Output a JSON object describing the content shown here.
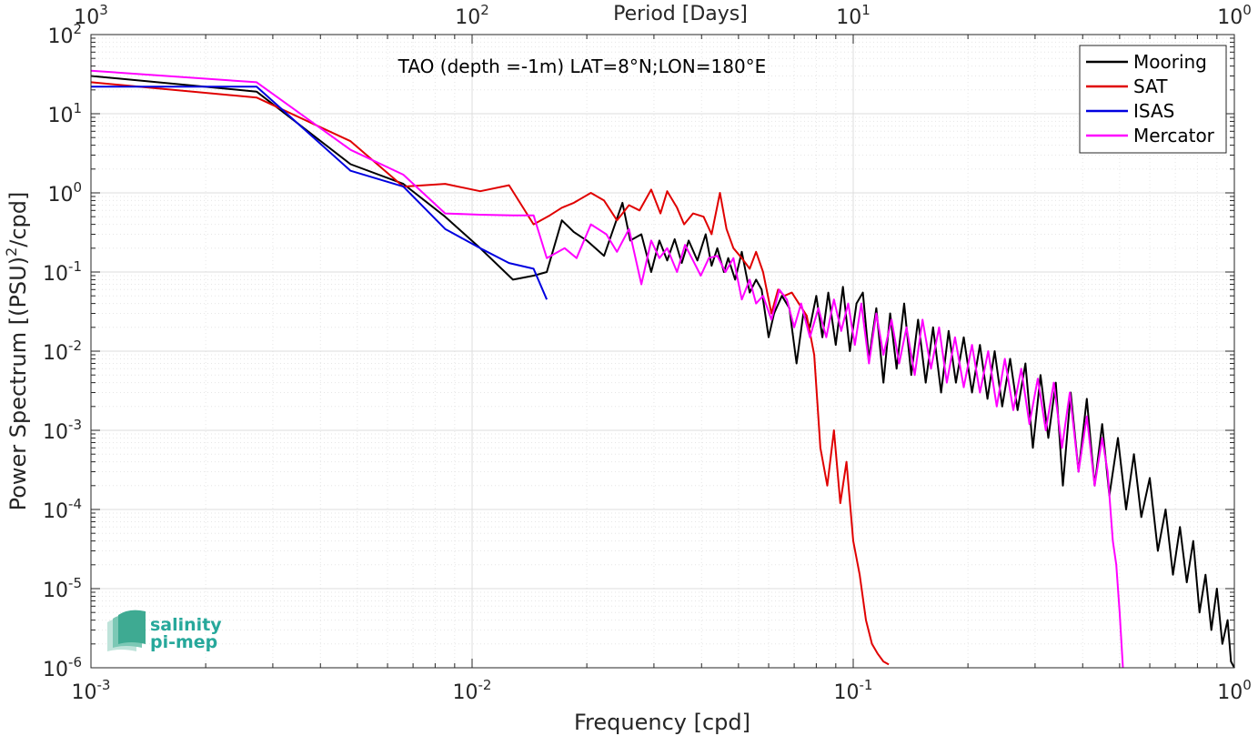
{
  "chart_data": {
    "type": "line",
    "title": "TAO (depth =-1m) LAT=8°N;LON=180°E",
    "xlabel": "Frequency [cpd]",
    "ylabel_base": "Power Spectrum [(PSU)",
    "ylabel_sup": "2",
    "ylabel_tail": "/cpd]",
    "top_xlabel": "Period [Days]",
    "x_scale": "log",
    "y_scale": "log",
    "xlim": [
      0.001,
      1
    ],
    "ylim": [
      1e-06,
      100
    ],
    "grid": true,
    "legend_position": "top-right",
    "x_ticks": [
      {
        "value": 0.001,
        "base": "10",
        "exp": "-3"
      },
      {
        "value": 0.01,
        "base": "10",
        "exp": "-2"
      },
      {
        "value": 0.1,
        "base": "10",
        "exp": "-1"
      },
      {
        "value": 1,
        "base": "10",
        "exp": "0"
      }
    ],
    "y_ticks": [
      {
        "value": 1e-06,
        "base": "10",
        "exp": "-6"
      },
      {
        "value": 1e-05,
        "base": "10",
        "exp": "-5"
      },
      {
        "value": 0.0001,
        "base": "10",
        "exp": "-4"
      },
      {
        "value": 0.001,
        "base": "10",
        "exp": "-3"
      },
      {
        "value": 0.01,
        "base": "10",
        "exp": "-2"
      },
      {
        "value": 0.1,
        "base": "10",
        "exp": "-1"
      },
      {
        "value": 1,
        "base": "10",
        "exp": "0"
      },
      {
        "value": 10,
        "base": "10",
        "exp": "1"
      },
      {
        "value": 100,
        "base": "10",
        "exp": "2"
      }
    ],
    "top_ticks": [
      {
        "value": 0.001,
        "base": "10",
        "exp": "3"
      },
      {
        "value": 0.01,
        "base": "10",
        "exp": "2"
      },
      {
        "value": 0.1,
        "base": "10",
        "exp": "1"
      },
      {
        "value": 1,
        "base": "10",
        "exp": "0"
      }
    ],
    "series": [
      {
        "name": "Mooring",
        "color": "#000000",
        "points": [
          [
            0.001,
            30
          ],
          [
            0.00272,
            19
          ],
          [
            0.0048,
            2.3
          ],
          [
            0.0066,
            1.3
          ],
          [
            0.0085,
            0.5
          ],
          [
            0.0105,
            0.2
          ],
          [
            0.0128,
            0.08
          ],
          [
            0.0145,
            0.09
          ],
          [
            0.0157,
            0.1
          ],
          [
            0.0172,
            0.45
          ],
          [
            0.0185,
            0.32
          ],
          [
            0.02,
            0.25
          ],
          [
            0.0222,
            0.16
          ],
          [
            0.0248,
            0.75
          ],
          [
            0.026,
            0.25
          ],
          [
            0.0278,
            0.3
          ],
          [
            0.0295,
            0.1
          ],
          [
            0.031,
            0.25
          ],
          [
            0.0325,
            0.14
          ],
          [
            0.034,
            0.26
          ],
          [
            0.0355,
            0.13
          ],
          [
            0.037,
            0.25
          ],
          [
            0.039,
            0.14
          ],
          [
            0.041,
            0.3
          ],
          [
            0.0425,
            0.12
          ],
          [
            0.044,
            0.2
          ],
          [
            0.0458,
            0.1
          ],
          [
            0.047,
            0.15
          ],
          [
            0.049,
            0.08
          ],
          [
            0.051,
            0.18
          ],
          [
            0.0535,
            0.055
          ],
          [
            0.0556,
            0.08
          ],
          [
            0.0575,
            0.06
          ],
          [
            0.06,
            0.015
          ],
          [
            0.062,
            0.03
          ],
          [
            0.065,
            0.05
          ],
          [
            0.068,
            0.035
          ],
          [
            0.071,
            0.007
          ],
          [
            0.074,
            0.03
          ],
          [
            0.077,
            0.02
          ],
          [
            0.08,
            0.05
          ],
          [
            0.083,
            0.015
          ],
          [
            0.086,
            0.055
          ],
          [
            0.09,
            0.012
          ],
          [
            0.094,
            0.065
          ],
          [
            0.098,
            0.01
          ],
          [
            0.102,
            0.04
          ],
          [
            0.106,
            0.055
          ],
          [
            0.11,
            0.008
          ],
          [
            0.115,
            0.035
          ],
          [
            0.12,
            0.004
          ],
          [
            0.125,
            0.03
          ],
          [
            0.13,
            0.006
          ],
          [
            0.136,
            0.04
          ],
          [
            0.142,
            0.005
          ],
          [
            0.148,
            0.025
          ],
          [
            0.155,
            0.004
          ],
          [
            0.162,
            0.02
          ],
          [
            0.17,
            0.003
          ],
          [
            0.178,
            0.018
          ],
          [
            0.186,
            0.004
          ],
          [
            0.195,
            0.015
          ],
          [
            0.205,
            0.003
          ],
          [
            0.215,
            0.012
          ],
          [
            0.225,
            0.0025
          ],
          [
            0.235,
            0.01
          ],
          [
            0.246,
            0.002
          ],
          [
            0.258,
            0.008
          ],
          [
            0.27,
            0.0018
          ],
          [
            0.283,
            0.007
          ],
          [
            0.296,
            0.0006
          ],
          [
            0.31,
            0.005
          ],
          [
            0.325,
            0.0008
          ],
          [
            0.34,
            0.004
          ],
          [
            0.355,
            0.0002
          ],
          [
            0.372,
            0.003
          ],
          [
            0.39,
            0.0003
          ],
          [
            0.41,
            0.0025
          ],
          [
            0.43,
            0.0002
          ],
          [
            0.45,
            0.0012
          ],
          [
            0.47,
            0.00015
          ],
          [
            0.495,
            0.0008
          ],
          [
            0.52,
            0.0001
          ],
          [
            0.545,
            0.0005
          ],
          [
            0.57,
            8e-05
          ],
          [
            0.6,
            0.00025
          ],
          [
            0.63,
            3e-05
          ],
          [
            0.66,
            0.0001
          ],
          [
            0.69,
            1.5e-05
          ],
          [
            0.72,
            6e-05
          ],
          [
            0.75,
            1.2e-05
          ],
          [
            0.78,
            4e-05
          ],
          [
            0.81,
            5e-06
          ],
          [
            0.84,
            1.5e-05
          ],
          [
            0.87,
            3e-06
          ],
          [
            0.9,
            1e-05
          ],
          [
            0.93,
            2e-06
          ],
          [
            0.96,
            4e-06
          ],
          [
            0.98,
            1.2e-06
          ],
          [
            1.0,
            1e-06
          ]
        ]
      },
      {
        "name": "SAT",
        "color": "#e00000",
        "points": [
          [
            0.001,
            25
          ],
          [
            0.00272,
            16
          ],
          [
            0.0048,
            4.5
          ],
          [
            0.0066,
            1.2
          ],
          [
            0.0085,
            1.3
          ],
          [
            0.0105,
            1.05
          ],
          [
            0.0125,
            1.25
          ],
          [
            0.0145,
            0.4
          ],
          [
            0.016,
            0.52
          ],
          [
            0.0172,
            0.65
          ],
          [
            0.0185,
            0.75
          ],
          [
            0.0205,
            1.0
          ],
          [
            0.0222,
            0.8
          ],
          [
            0.024,
            0.45
          ],
          [
            0.0258,
            0.7
          ],
          [
            0.0275,
            0.6
          ],
          [
            0.0295,
            1.1
          ],
          [
            0.0312,
            0.55
          ],
          [
            0.0325,
            1.05
          ],
          [
            0.0345,
            0.65
          ],
          [
            0.036,
            0.4
          ],
          [
            0.038,
            0.55
          ],
          [
            0.0405,
            0.5
          ],
          [
            0.0425,
            0.3
          ],
          [
            0.0447,
            1.0
          ],
          [
            0.0465,
            0.35
          ],
          [
            0.0485,
            0.2
          ],
          [
            0.051,
            0.15
          ],
          [
            0.0535,
            0.11
          ],
          [
            0.0556,
            0.18
          ],
          [
            0.058,
            0.1
          ],
          [
            0.061,
            0.03
          ],
          [
            0.0635,
            0.06
          ],
          [
            0.066,
            0.05
          ],
          [
            0.069,
            0.055
          ],
          [
            0.072,
            0.04
          ],
          [
            0.0755,
            0.028
          ],
          [
            0.079,
            0.009
          ],
          [
            0.082,
            0.0006
          ],
          [
            0.0855,
            0.0002
          ],
          [
            0.089,
            0.001
          ],
          [
            0.0925,
            0.00012
          ],
          [
            0.096,
            0.0004
          ],
          [
            0.1,
            4e-05
          ],
          [
            0.104,
            1.5e-05
          ],
          [
            0.108,
            4e-06
          ],
          [
            0.112,
            2e-06
          ],
          [
            0.116,
            1.5e-06
          ],
          [
            0.12,
            1.2e-06
          ],
          [
            0.124,
            1.1e-06
          ]
        ]
      },
      {
        "name": "ISAS",
        "color": "#0000e0",
        "points": [
          [
            0.001,
            22
          ],
          [
            0.00272,
            22
          ],
          [
            0.0048,
            1.9
          ],
          [
            0.0066,
            1.2
          ],
          [
            0.0085,
            0.35
          ],
          [
            0.0105,
            0.2
          ],
          [
            0.0125,
            0.13
          ],
          [
            0.0145,
            0.11
          ],
          [
            0.0157,
            0.045
          ]
        ]
      },
      {
        "name": "Mercator",
        "color": "#ff00ff",
        "points": [
          [
            0.001,
            35
          ],
          [
            0.00272,
            25
          ],
          [
            0.0048,
            3.5
          ],
          [
            0.0066,
            1.7
          ],
          [
            0.0085,
            0.55
          ],
          [
            0.0105,
            0.53
          ],
          [
            0.0128,
            0.52
          ],
          [
            0.0145,
            0.52
          ],
          [
            0.0157,
            0.15
          ],
          [
            0.0175,
            0.2
          ],
          [
            0.0188,
            0.15
          ],
          [
            0.0205,
            0.4
          ],
          [
            0.0225,
            0.3
          ],
          [
            0.024,
            0.18
          ],
          [
            0.0258,
            0.35
          ],
          [
            0.0278,
            0.07
          ],
          [
            0.0295,
            0.25
          ],
          [
            0.031,
            0.15
          ],
          [
            0.0325,
            0.2
          ],
          [
            0.0345,
            0.1
          ],
          [
            0.0362,
            0.22
          ],
          [
            0.038,
            0.14
          ],
          [
            0.0398,
            0.09
          ],
          [
            0.0418,
            0.15
          ],
          [
            0.044,
            0.16
          ],
          [
            0.0462,
            0.1
          ],
          [
            0.0485,
            0.15
          ],
          [
            0.051,
            0.045
          ],
          [
            0.0535,
            0.08
          ],
          [
            0.0556,
            0.04
          ],
          [
            0.058,
            0.05
          ],
          [
            0.061,
            0.025
          ],
          [
            0.064,
            0.06
          ],
          [
            0.067,
            0.045
          ],
          [
            0.07,
            0.02
          ],
          [
            0.073,
            0.04
          ],
          [
            0.077,
            0.015
          ],
          [
            0.081,
            0.035
          ],
          [
            0.085,
            0.015
          ],
          [
            0.089,
            0.045
          ],
          [
            0.093,
            0.018
          ],
          [
            0.097,
            0.04
          ],
          [
            0.101,
            0.012
          ],
          [
            0.105,
            0.04
          ],
          [
            0.11,
            0.007
          ],
          [
            0.115,
            0.03
          ],
          [
            0.12,
            0.009
          ],
          [
            0.126,
            0.025
          ],
          [
            0.132,
            0.007
          ],
          [
            0.138,
            0.02
          ],
          [
            0.145,
            0.005
          ],
          [
            0.152,
            0.025
          ],
          [
            0.16,
            0.006
          ],
          [
            0.168,
            0.02
          ],
          [
            0.176,
            0.004
          ],
          [
            0.185,
            0.015
          ],
          [
            0.195,
            0.0035
          ],
          [
            0.205,
            0.012
          ],
          [
            0.215,
            0.003
          ],
          [
            0.226,
            0.01
          ],
          [
            0.238,
            0.002
          ],
          [
            0.25,
            0.008
          ],
          [
            0.263,
            0.0018
          ],
          [
            0.276,
            0.006
          ],
          [
            0.29,
            0.0012
          ],
          [
            0.305,
            0.0045
          ],
          [
            0.32,
            0.001
          ],
          [
            0.336,
            0.004
          ],
          [
            0.353,
            0.0006
          ],
          [
            0.37,
            0.003
          ],
          [
            0.39,
            0.0003
          ],
          [
            0.41,
            0.0015
          ],
          [
            0.43,
            0.0002
          ],
          [
            0.45,
            0.0008
          ],
          [
            0.465,
            0.0003
          ],
          [
            0.48,
            4e-05
          ],
          [
            0.49,
            2e-05
          ],
          [
            0.5,
            5e-06
          ],
          [
            0.51,
            1e-06
          ]
        ]
      }
    ]
  },
  "logo": {
    "line1": "salinity",
    "line2": "pi-mep"
  }
}
